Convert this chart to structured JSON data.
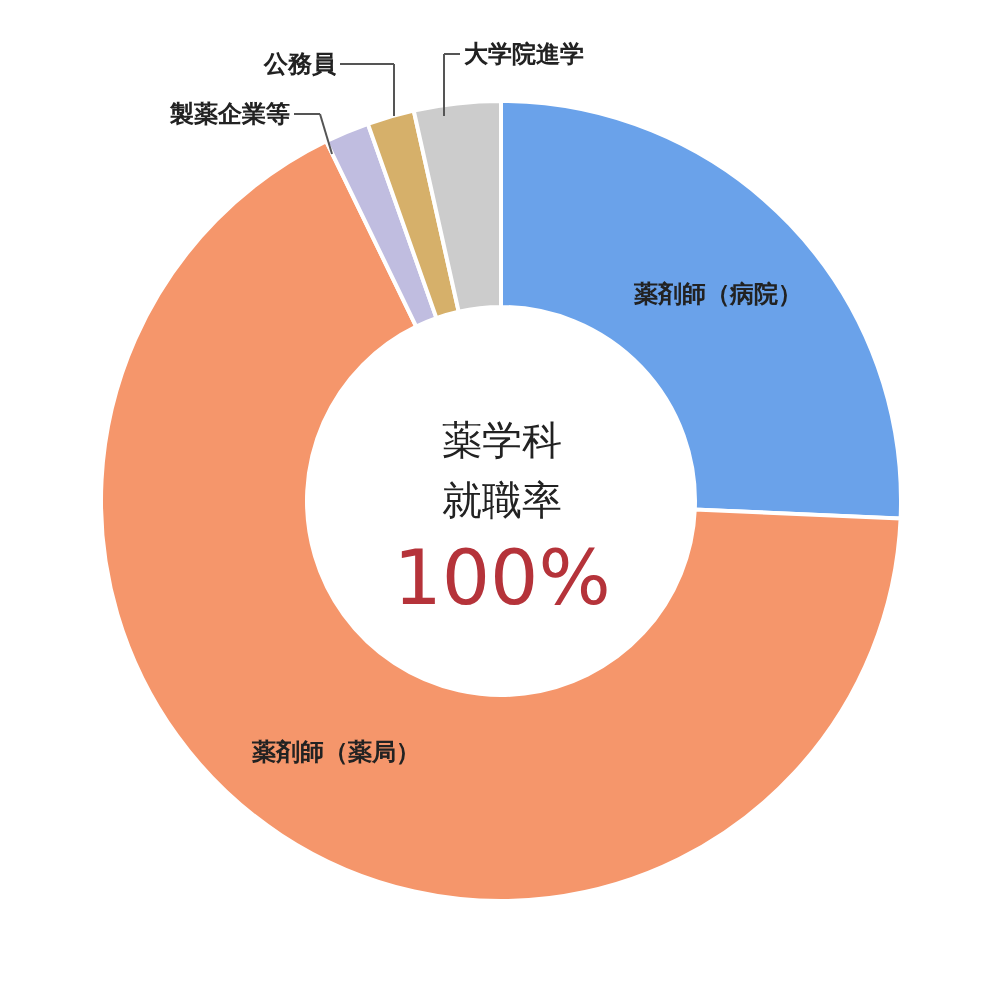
{
  "chart_data": {
    "type": "donut",
    "categories": [
      "薬剤師（病院）",
      "薬剤師（薬局）",
      "製薬企業等",
      "公務員",
      "大学院進学"
    ],
    "values": [
      25.7,
      67.1,
      1.8,
      1.9,
      3.5
    ],
    "colors": [
      "#6aa2ea",
      "#f5966b",
      "#c0bde0",
      "#d6b06a",
      "#cccccc"
    ],
    "annotations": [
      "薬学科",
      "就職率",
      "100%"
    ],
    "legend": false
  }
}
